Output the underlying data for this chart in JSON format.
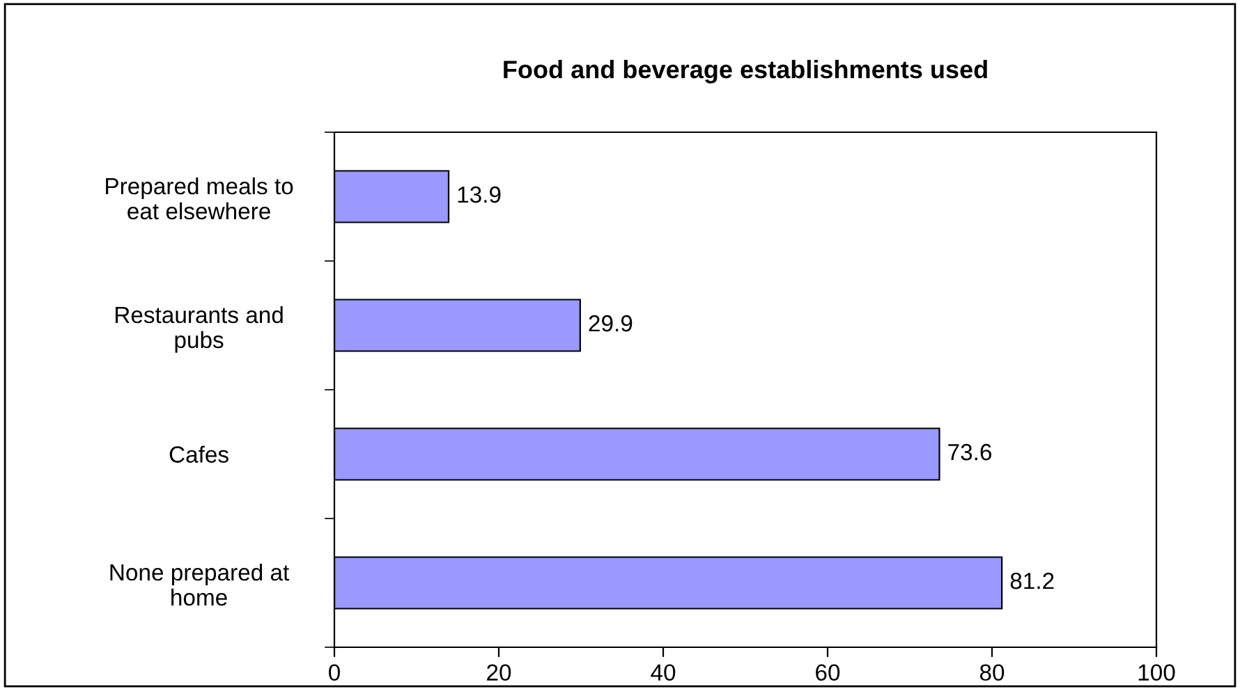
{
  "chart_data": {
    "type": "bar",
    "orientation": "horizontal",
    "title": "Food and beverage establishments used",
    "categories": [
      "Prepared meals to\neat elsewhere",
      "Restaurants and\npubs",
      "Cafes",
      "None prepared at\nhome"
    ],
    "values": [
      13.9,
      29.9,
      73.6,
      81.2
    ],
    "color": "#9999ff",
    "xlim": [
      0,
      100
    ],
    "xticks": [
      0,
      20,
      40,
      60,
      80,
      100
    ],
    "grid": false,
    "data_labels": true
  }
}
